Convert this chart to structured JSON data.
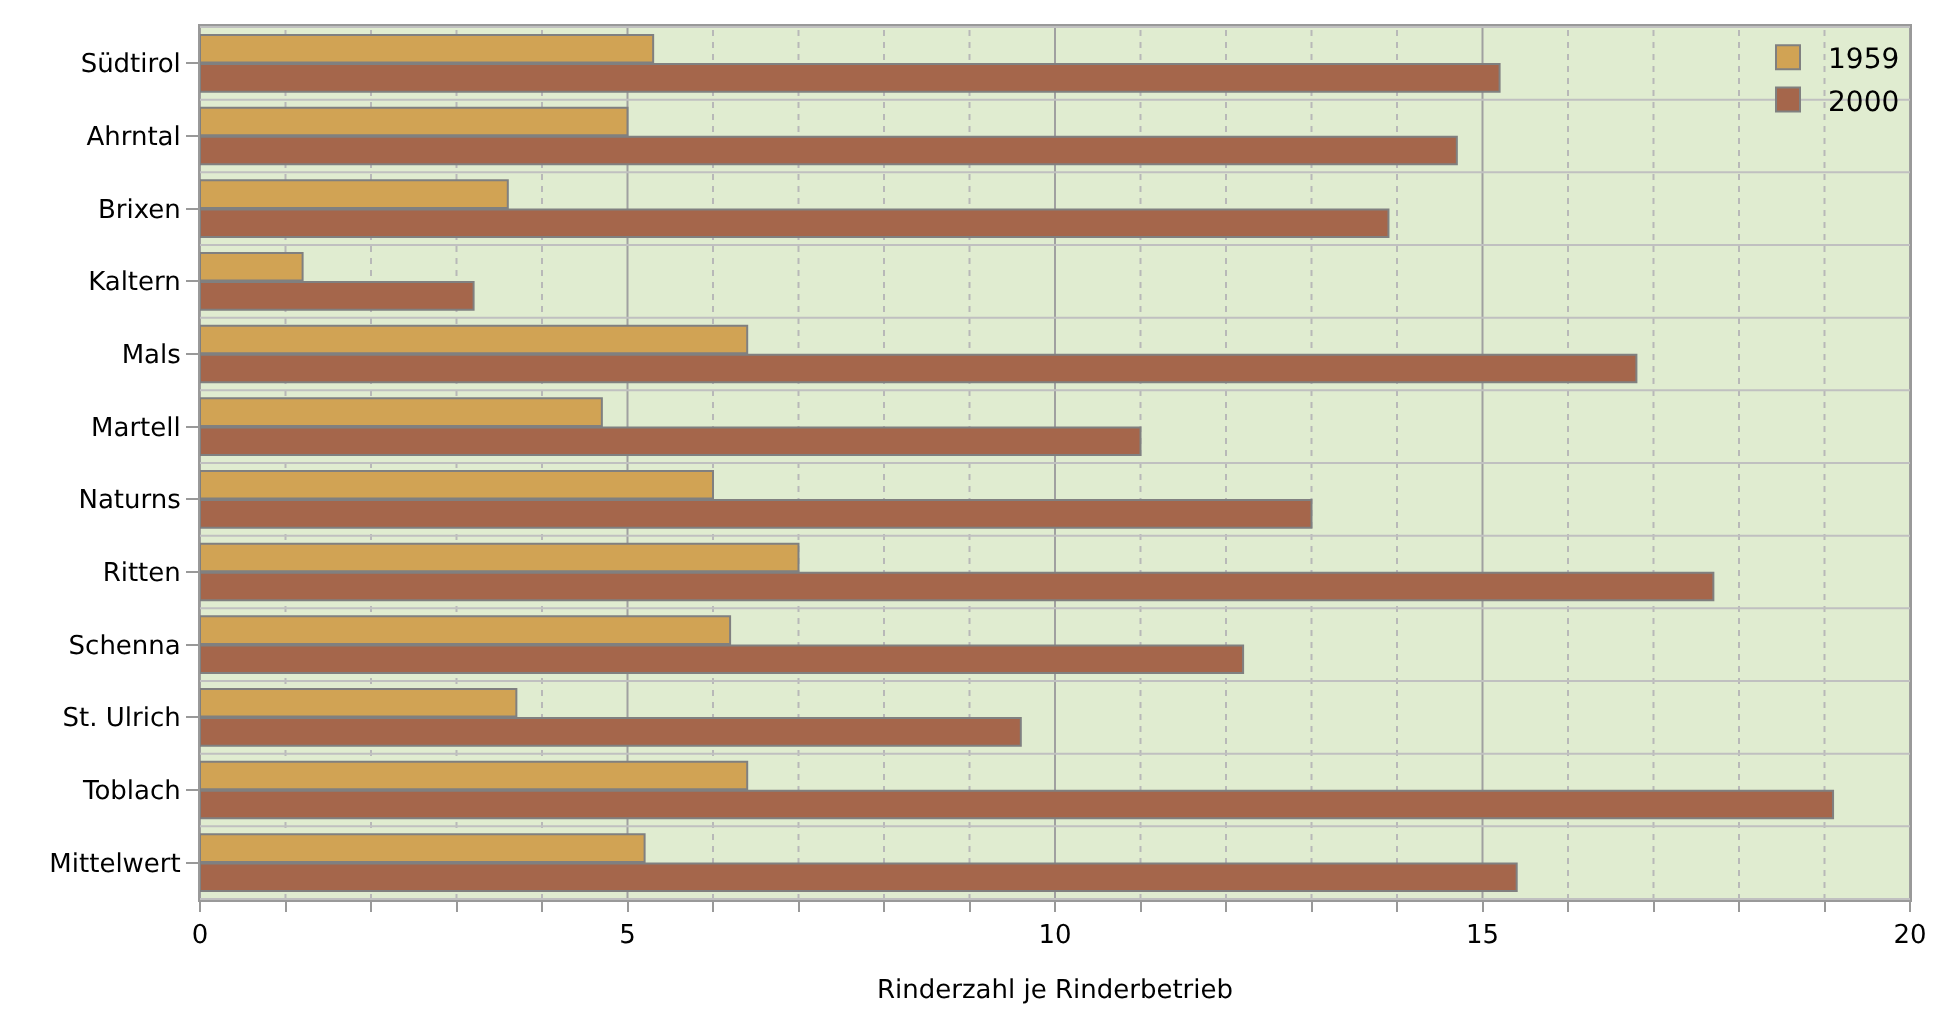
{
  "chart_data": {
    "type": "bar",
    "orientation": "horizontal",
    "xlabel": "Rinderzahl je Rinderbetrieb",
    "categories": [
      "Südtirol",
      "Ahrntal",
      "Brixen",
      "Kaltern",
      "Mals",
      "Martell",
      "Naturns",
      "Ritten",
      "Schenna",
      "St. Ulrich",
      "Toblach",
      "Mittelwert"
    ],
    "series": [
      {
        "name": "1959",
        "color": "#d1a354",
        "values": [
          5.3,
          5.0,
          3.6,
          1.2,
          6.4,
          4.7,
          6.0,
          7.0,
          6.2,
          3.7,
          6.4,
          5.2
        ]
      },
      {
        "name": "2000",
        "color": "#a5664b",
        "values": [
          15.2,
          14.7,
          13.9,
          3.2,
          16.8,
          11.0,
          13.0,
          17.7,
          12.2,
          9.6,
          19.1,
          15.4
        ]
      }
    ],
    "xlim": [
      0,
      20
    ],
    "xticks": [
      0,
      {
        "value": 1,
        "label": null
      },
      {
        "value": 2,
        "label": null
      },
      {
        "value": 3,
        "label": null
      },
      {
        "value": 4,
        "label": null
      },
      5,
      {
        "value": 6,
        "label": null
      },
      {
        "value": 7,
        "label": null
      },
      {
        "value": 8,
        "label": null
      },
      {
        "value": 9,
        "label": null
      },
      10,
      {
        "value": 11,
        "label": null
      },
      {
        "value": 12,
        "label": null
      },
      {
        "value": 13,
        "label": null
      },
      {
        "value": 14,
        "label": null
      },
      15,
      {
        "value": 16,
        "label": null
      },
      {
        "value": 17,
        "label": null
      },
      {
        "value": 18,
        "label": null
      },
      {
        "value": 19,
        "label": null
      },
      20
    ],
    "grid": "x",
    "legend": "top right"
  }
}
